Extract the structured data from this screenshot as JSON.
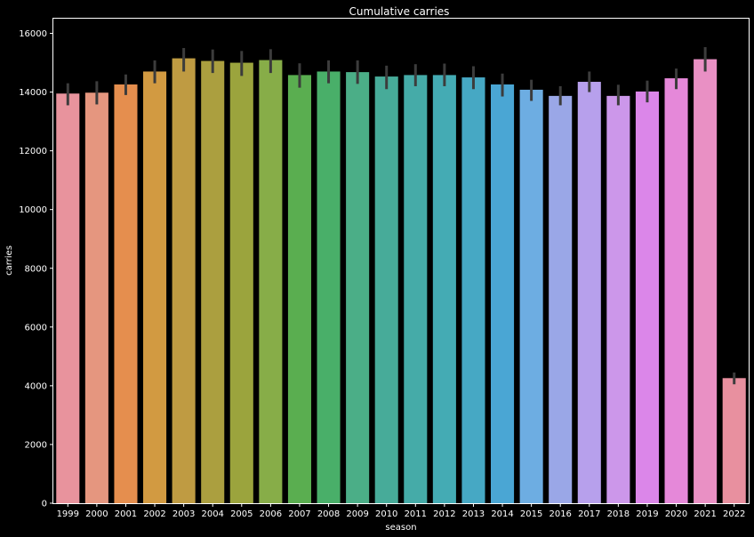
{
  "chart_data": {
    "type": "bar",
    "title": "Cumulative carries",
    "xlabel": "season",
    "ylabel": "carries",
    "ylim": [
      0,
      16500
    ],
    "yticks": [
      0,
      2000,
      4000,
      6000,
      8000,
      10000,
      12000,
      14000,
      16000
    ],
    "grid": false,
    "categories": [
      "1999",
      "2000",
      "2001",
      "2002",
      "2003",
      "2004",
      "2005",
      "2006",
      "2007",
      "2008",
      "2009",
      "2010",
      "2011",
      "2012",
      "2013",
      "2014",
      "2015",
      "2016",
      "2017",
      "2018",
      "2019",
      "2020",
      "2021",
      "2022"
    ],
    "values": [
      13950,
      13980,
      14260,
      14700,
      15150,
      15060,
      15000,
      15090,
      14580,
      14700,
      14680,
      14530,
      14580,
      14580,
      14500,
      14260,
      14080,
      13870,
      14350,
      13870,
      14020,
      14470,
      15120,
      4260
    ],
    "error_low": [
      13550,
      13580,
      13900,
      14300,
      14700,
      14650,
      14550,
      14650,
      14150,
      14300,
      14280,
      14100,
      14200,
      14200,
      14100,
      13850,
      13700,
      13550,
      14000,
      13550,
      13650,
      14100,
      14700,
      4050
    ],
    "error_high": [
      14300,
      14370,
      14600,
      15080,
      15500,
      15450,
      15400,
      15460,
      14980,
      15080,
      15080,
      14900,
      14950,
      14970,
      14880,
      14630,
      14420,
      14200,
      14700,
      14250,
      14390,
      14800,
      15530,
      4450
    ],
    "colors": [
      "#e8939d",
      "#e5967f",
      "#e58e4e",
      "#d29a41",
      "#bf9b42",
      "#ab9f3f",
      "#9ba43d",
      "#87ad48",
      "#5aae50",
      "#49af69",
      "#4bae87",
      "#47ab99",
      "#45aba8",
      "#44abb4",
      "#46a8c4",
      "#4aa6d4",
      "#6dade2",
      "#9aa7e7",
      "#b7a0ec",
      "#cc97ea",
      "#db86e9",
      "#e588d9",
      "#e990c4",
      "#e8909f"
    ],
    "errorbar_color": "#3c3c3c"
  }
}
